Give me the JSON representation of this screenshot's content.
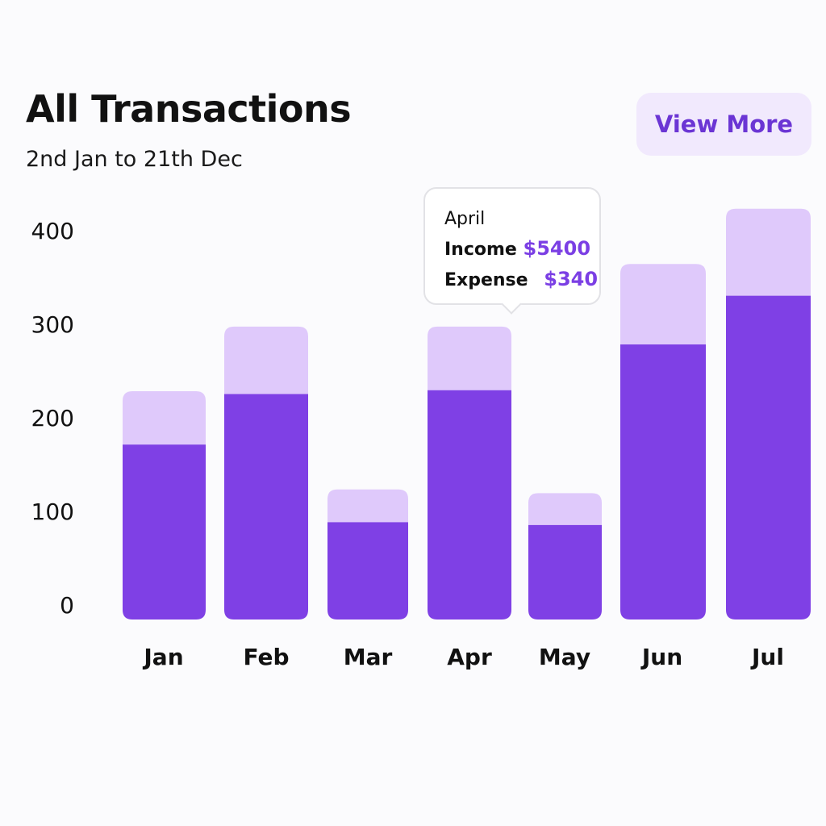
{
  "header": {
    "title": "All Transactions",
    "subtitle": "2nd Jan to 21th Dec",
    "view_more_label": "View More"
  },
  "tooltip": {
    "month": "April",
    "income_label": "Income",
    "income_value": "$5400",
    "expense_label": "Expense",
    "expense_value": "$340"
  },
  "colors": {
    "income": "#7f40e5",
    "expense": "#dfc9fb",
    "accent_text": "#6b35d4",
    "button_bg": "#f1e9fd"
  },
  "chart_data": {
    "type": "bar",
    "stacked": true,
    "categories": [
      "Jan",
      "Feb",
      "Mar",
      "Apr",
      "May",
      "Jun",
      "Jul"
    ],
    "series": [
      {
        "values": [
          187,
          241,
          104,
          245,
          101,
          294,
          346
        ]
      },
      {
        "values": [
          57,
          72,
          35,
          68,
          34,
          86,
          93
        ]
      }
    ],
    "y_ticks": [
      "0",
      "100",
      "200",
      "300",
      "400"
    ],
    "ylim": [
      0,
      420
    ],
    "xlabel": "",
    "ylabel": "",
    "grid": false,
    "legend": "none"
  }
}
